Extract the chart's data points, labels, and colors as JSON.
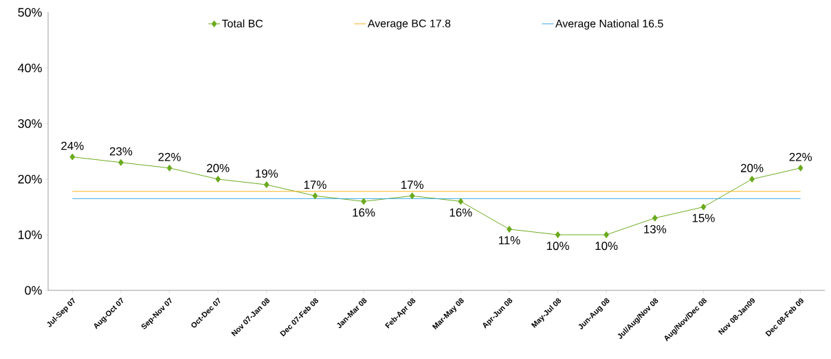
{
  "chart_data": {
    "type": "line",
    "categories": [
      "Jul-Sep 07",
      "Aug-Oct 07",
      "Sep-Nov 07",
      "Oct-Dec 07",
      "Nov 07-Jan 08",
      "Dec 07-Feb 08",
      "Jan-Mar 08",
      "Feb-Apr 08",
      "Mar-May 08",
      "Apr-Jun 08",
      "May-Jul 08",
      "Jun-Aug 08",
      "Jul/Aug/Nov 08",
      "Aug/Nov/Dec 08",
      "Nov 08-Jan09",
      "Dec 08-Feb 09"
    ],
    "series": [
      {
        "name": "Total BC",
        "color": "#6aaa1e",
        "values": [
          24,
          23,
          22,
          20,
          19,
          17,
          16,
          17,
          16,
          11,
          10,
          10,
          13,
          15,
          20,
          22
        ]
      }
    ],
    "value_labels": [
      "24%",
      "23%",
      "22%",
      "20%",
      "19%",
      "17%",
      "16%",
      "17%",
      "16%",
      "11%",
      "10%",
      "10%",
      "13%",
      "15%",
      "20%",
      "22%"
    ],
    "ref_lines": [
      {
        "axis": "y",
        "value": 17.8,
        "label": "Average BC 17.8",
        "color": "#f5b31a"
      },
      {
        "axis": "y",
        "value": 16.5,
        "label": "Average National 16.5",
        "color": "#3ca8e0"
      }
    ],
    "ylim": [
      0,
      50
    ],
    "yticks": [
      {
        "value": 0,
        "label": "0%"
      },
      {
        "value": 10,
        "label": "10%"
      },
      {
        "value": 20,
        "label": "20%"
      },
      {
        "value": 30,
        "label": "30%"
      },
      {
        "value": 40,
        "label": "40%"
      },
      {
        "value": 50,
        "label": "50%"
      }
    ],
    "marker": "diamond",
    "line_style": "solid",
    "legend": "top",
    "grid": false
  }
}
